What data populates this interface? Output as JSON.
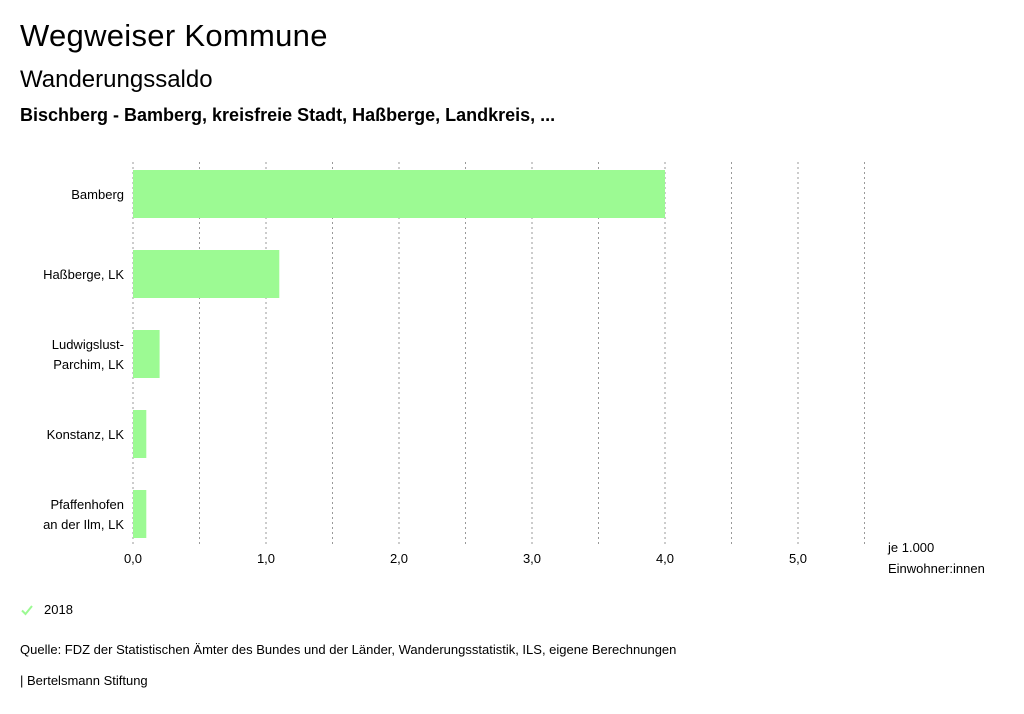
{
  "header": {
    "title": "Wegweiser Kommune",
    "subtitle": "Wanderungssaldo",
    "region": "Bischberg - Bamberg, kreisfreie Stadt, Haßberge, Landkreis, ..."
  },
  "chart_data": {
    "type": "bar",
    "orientation": "horizontal",
    "categories": [
      [
        "Bamberg"
      ],
      [
        "Haßberge, LK"
      ],
      [
        "Ludwigslust-",
        "Parchim, LK"
      ],
      [
        "Konstanz, LK"
      ],
      [
        "Pfaffenhofen",
        "an der Ilm, LK"
      ]
    ],
    "series": [
      {
        "name": "2018",
        "color": "#9cfa93",
        "values": [
          4.0,
          1.1,
          0.2,
          0.1,
          0.1
        ]
      }
    ],
    "xlim": [
      0,
      5.5
    ],
    "xticks": [
      "0,0",
      "1,0",
      "2,0",
      "3,0",
      "4,0",
      "5,0"
    ],
    "xtick_values": [
      0,
      1,
      2,
      3,
      4,
      5
    ],
    "unit_label": [
      "je 1.000",
      "Einwohner:innen"
    ],
    "grid": true,
    "legend_position": "bottom-left"
  },
  "footer": {
    "legend_label": "2018",
    "source": "Quelle: FDZ der Statistischen Ämter des Bundes und der Länder, Wanderungsstatistik, ILS, eigene Berechnungen",
    "publisher": "| Bertelsmann Stiftung"
  },
  "colors": {
    "bar": "#9cfa93",
    "check": "#9cfa93",
    "grid": "#999999"
  }
}
